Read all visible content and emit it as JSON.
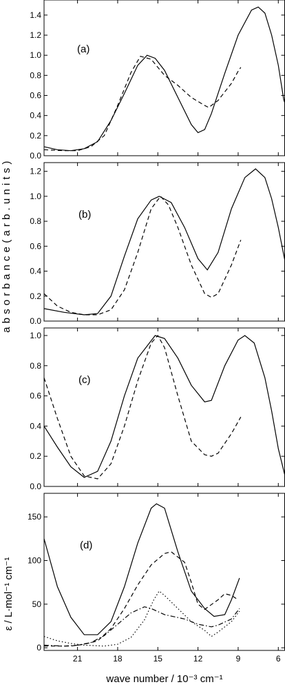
{
  "figure": {
    "x_axis_label": "wave number / 10⁻³ cm⁻¹",
    "shared_y_label": "a b s o r b a n c e ( a r b . u n i t s )",
    "panel_d_y_label": "ε / L·mol⁻¹ cm⁻¹"
  },
  "chart_data": [
    {
      "type": "line",
      "panel_label": "(a)",
      "xlim": [
        23.5,
        5.5
      ],
      "ylim": [
        0.0,
        1.55
      ],
      "x_ticks": [
        21,
        18,
        15,
        12,
        9,
        6
      ],
      "y_ticks": [
        0.0,
        0.2,
        0.4,
        0.6,
        0.8,
        1.0,
        1.2,
        1.4
      ],
      "y_tick_labels": [
        "0.0",
        "0.2",
        "0.4",
        "0.6",
        "0.8",
        "1.0",
        "1.2",
        "1.4"
      ],
      "series": [
        {
          "style": "solid",
          "points": [
            [
              23.5,
              0.09
            ],
            [
              22.5,
              0.06
            ],
            [
              21.5,
              0.05
            ],
            [
              20.5,
              0.07
            ],
            [
              19.5,
              0.14
            ],
            [
              18.5,
              0.35
            ],
            [
              17.5,
              0.62
            ],
            [
              16.5,
              0.9
            ],
            [
              15.8,
              1.0
            ],
            [
              15.2,
              0.97
            ],
            [
              14.5,
              0.85
            ],
            [
              13.5,
              0.58
            ],
            [
              12.5,
              0.31
            ],
            [
              12.0,
              0.23
            ],
            [
              11.5,
              0.26
            ],
            [
              11.0,
              0.42
            ],
            [
              10.0,
              0.82
            ],
            [
              9.0,
              1.2
            ],
            [
              8.0,
              1.45
            ],
            [
              7.5,
              1.48
            ],
            [
              7.0,
              1.42
            ],
            [
              6.5,
              1.2
            ],
            [
              6.0,
              0.9
            ],
            [
              5.6,
              0.56
            ],
            [
              5.5,
              0.52
            ]
          ]
        },
        {
          "style": "dashed",
          "points": [
            [
              23.5,
              0.06
            ],
            [
              22,
              0.05
            ],
            [
              21,
              0.05
            ],
            [
              20,
              0.09
            ],
            [
              19,
              0.2
            ],
            [
              18,
              0.5
            ],
            [
              17,
              0.83
            ],
            [
              16.3,
              0.99
            ],
            [
              15.5,
              0.96
            ],
            [
              14.5,
              0.8
            ],
            [
              13.5,
              0.7
            ],
            [
              12.5,
              0.58
            ],
            [
              11.5,
              0.5
            ],
            [
              11.2,
              0.48
            ],
            [
              10.5,
              0.55
            ],
            [
              9.5,
              0.72
            ],
            [
              9.0,
              0.84
            ],
            [
              8.8,
              0.88
            ]
          ]
        }
      ]
    },
    {
      "type": "line",
      "panel_label": "(b)",
      "xlim": [
        23.5,
        5.5
      ],
      "ylim": [
        0.0,
        1.27
      ],
      "x_ticks": [
        21,
        18,
        15,
        12,
        9,
        6
      ],
      "y_ticks": [
        0.0,
        0.2,
        0.4,
        0.6,
        0.8,
        1.0,
        1.2
      ],
      "y_tick_labels": [
        "0.0",
        "0.2",
        "0.4",
        "0.6",
        "0.8",
        "1.0",
        "1.2"
      ],
      "series": [
        {
          "style": "solid",
          "points": [
            [
              23.5,
              0.1
            ],
            [
              22,
              0.07
            ],
            [
              20.5,
              0.05
            ],
            [
              19.5,
              0.06
            ],
            [
              18.5,
              0.2
            ],
            [
              17.5,
              0.52
            ],
            [
              16.5,
              0.82
            ],
            [
              15.5,
              0.97
            ],
            [
              14.9,
              1.0
            ],
            [
              14,
              0.95
            ],
            [
              13,
              0.75
            ],
            [
              12,
              0.5
            ],
            [
              11.3,
              0.41
            ],
            [
              10.5,
              0.55
            ],
            [
              9.5,
              0.9
            ],
            [
              8.5,
              1.15
            ],
            [
              7.7,
              1.22
            ],
            [
              7,
              1.15
            ],
            [
              6.5,
              0.98
            ],
            [
              6,
              0.75
            ],
            [
              5.5,
              0.48
            ]
          ]
        },
        {
          "style": "dashed",
          "points": [
            [
              23.5,
              0.22
            ],
            [
              22.5,
              0.12
            ],
            [
              21.5,
              0.07
            ],
            [
              20.5,
              0.05
            ],
            [
              19.5,
              0.05
            ],
            [
              18.5,
              0.09
            ],
            [
              17.5,
              0.25
            ],
            [
              16.5,
              0.55
            ],
            [
              15.5,
              0.9
            ],
            [
              14.8,
              1.0
            ],
            [
              14.2,
              0.93
            ],
            [
              13.5,
              0.75
            ],
            [
              12.5,
              0.45
            ],
            [
              11.5,
              0.22
            ],
            [
              11.0,
              0.19
            ],
            [
              10.5,
              0.22
            ],
            [
              9.5,
              0.45
            ],
            [
              8.8,
              0.65
            ]
          ]
        }
      ]
    },
    {
      "type": "line",
      "panel_label": "(c)",
      "xlim": [
        23.5,
        5.5
      ],
      "ylim": [
        0.0,
        1.05
      ],
      "x_ticks": [
        21,
        18,
        15,
        12,
        9,
        6
      ],
      "y_ticks": [
        0.0,
        0.2,
        0.4,
        0.6,
        0.8,
        1.0
      ],
      "y_tick_labels": [
        "0.0",
        "0.2",
        "0.4",
        "0.6",
        "0.8",
        "1.0"
      ],
      "series": [
        {
          "style": "solid",
          "points": [
            [
              23.5,
              0.4
            ],
            [
              22.5,
              0.26
            ],
            [
              21.5,
              0.13
            ],
            [
              20.5,
              0.06
            ],
            [
              19.5,
              0.1
            ],
            [
              18.5,
              0.3
            ],
            [
              17.5,
              0.6
            ],
            [
              16.5,
              0.85
            ],
            [
              15.2,
              1.0
            ],
            [
              14.5,
              0.98
            ],
            [
              13.5,
              0.85
            ],
            [
              12.5,
              0.67
            ],
            [
              11.5,
              0.56
            ],
            [
              11.0,
              0.57
            ],
            [
              10.0,
              0.8
            ],
            [
              9.0,
              0.97
            ],
            [
              8.5,
              1.0
            ],
            [
              7.8,
              0.95
            ],
            [
              7.0,
              0.72
            ],
            [
              6.5,
              0.5
            ],
            [
              6.0,
              0.25
            ],
            [
              5.5,
              0.07
            ]
          ]
        },
        {
          "style": "dashed",
          "points": [
            [
              23.5,
              0.72
            ],
            [
              22.5,
              0.45
            ],
            [
              21.5,
              0.2
            ],
            [
              20.5,
              0.07
            ],
            [
              19.5,
              0.05
            ],
            [
              18.5,
              0.15
            ],
            [
              17.5,
              0.4
            ],
            [
              16.5,
              0.7
            ],
            [
              15.5,
              0.95
            ],
            [
              15.0,
              1.0
            ],
            [
              14.5,
              0.92
            ],
            [
              13.5,
              0.6
            ],
            [
              12.5,
              0.3
            ],
            [
              11.5,
              0.21
            ],
            [
              11.0,
              0.2
            ],
            [
              10.5,
              0.22
            ],
            [
              9.5,
              0.35
            ],
            [
              8.8,
              0.46
            ]
          ]
        }
      ]
    },
    {
      "type": "line",
      "panel_label": "(d)",
      "xlim": [
        23.5,
        5.5
      ],
      "ylim": [
        -3,
        177
      ],
      "x_ticks": [
        21,
        18,
        15,
        12,
        9,
        6
      ],
      "x_tick_labels": [
        "21",
        "18",
        "15",
        "12",
        "9",
        "6"
      ],
      "y_ticks": [
        0,
        50,
        100,
        150
      ],
      "y_tick_labels": [
        "0",
        "50",
        "100",
        "150"
      ],
      "series": [
        {
          "style": "solid",
          "points": [
            [
              23.5,
              125
            ],
            [
              22.5,
              70
            ],
            [
              21.5,
              35
            ],
            [
              20.5,
              15
            ],
            [
              19.5,
              15
            ],
            [
              18.5,
              30
            ],
            [
              17.5,
              70
            ],
            [
              16.5,
              120
            ],
            [
              15.5,
              160
            ],
            [
              15.1,
              165
            ],
            [
              14.5,
              160
            ],
            [
              13.5,
              110
            ],
            [
              12.5,
              65
            ],
            [
              11.5,
              45
            ],
            [
              10.8,
              36
            ],
            [
              10.0,
              38
            ],
            [
              9.5,
              55
            ],
            [
              8.9,
              80
            ]
          ]
        },
        {
          "style": "dashed",
          "points": [
            [
              23.5,
              2
            ],
            [
              21.5,
              2
            ],
            [
              20.5,
              4
            ],
            [
              19.5,
              8
            ],
            [
              18.5,
              22
            ],
            [
              17.5,
              45
            ],
            [
              16.5,
              72
            ],
            [
              15.5,
              95
            ],
            [
              14.5,
              108
            ],
            [
              14.0,
              110
            ],
            [
              13.0,
              98
            ],
            [
              12.5,
              75
            ],
            [
              12.0,
              50
            ],
            [
              11.5,
              44
            ],
            [
              10.5,
              55
            ],
            [
              10.0,
              62
            ],
            [
              9.5,
              60
            ],
            [
              9.0,
              55
            ]
          ]
        },
        {
          "style": "dotted",
          "points": [
            [
              23.5,
              13
            ],
            [
              22.5,
              8
            ],
            [
              21.5,
              5
            ],
            [
              20.5,
              3
            ],
            [
              19,
              2
            ],
            [
              18,
              4
            ],
            [
              17,
              12
            ],
            [
              16,
              32
            ],
            [
              15.3,
              55
            ],
            [
              14.9,
              65
            ],
            [
              14.5,
              60
            ],
            [
              13.5,
              45
            ],
            [
              12.5,
              30
            ],
            [
              11.5,
              20
            ],
            [
              11.0,
              13
            ],
            [
              10.5,
              18
            ],
            [
              9.5,
              30
            ],
            [
              8.9,
              42
            ]
          ]
        },
        {
          "style": "dashdot",
          "points": [
            [
              23.5,
              3
            ],
            [
              22,
              2
            ],
            [
              21,
              3
            ],
            [
              20,
              6
            ],
            [
              19,
              14
            ],
            [
              18,
              27
            ],
            [
              17,
              40
            ],
            [
              16,
              47
            ],
            [
              15.5,
              45
            ],
            [
              14.5,
              38
            ],
            [
              13,
              33
            ],
            [
              12,
              27
            ],
            [
              11.0,
              24
            ],
            [
              10.5,
              26
            ],
            [
              9.5,
              33
            ],
            [
              8.9,
              45
            ]
          ]
        }
      ]
    }
  ]
}
